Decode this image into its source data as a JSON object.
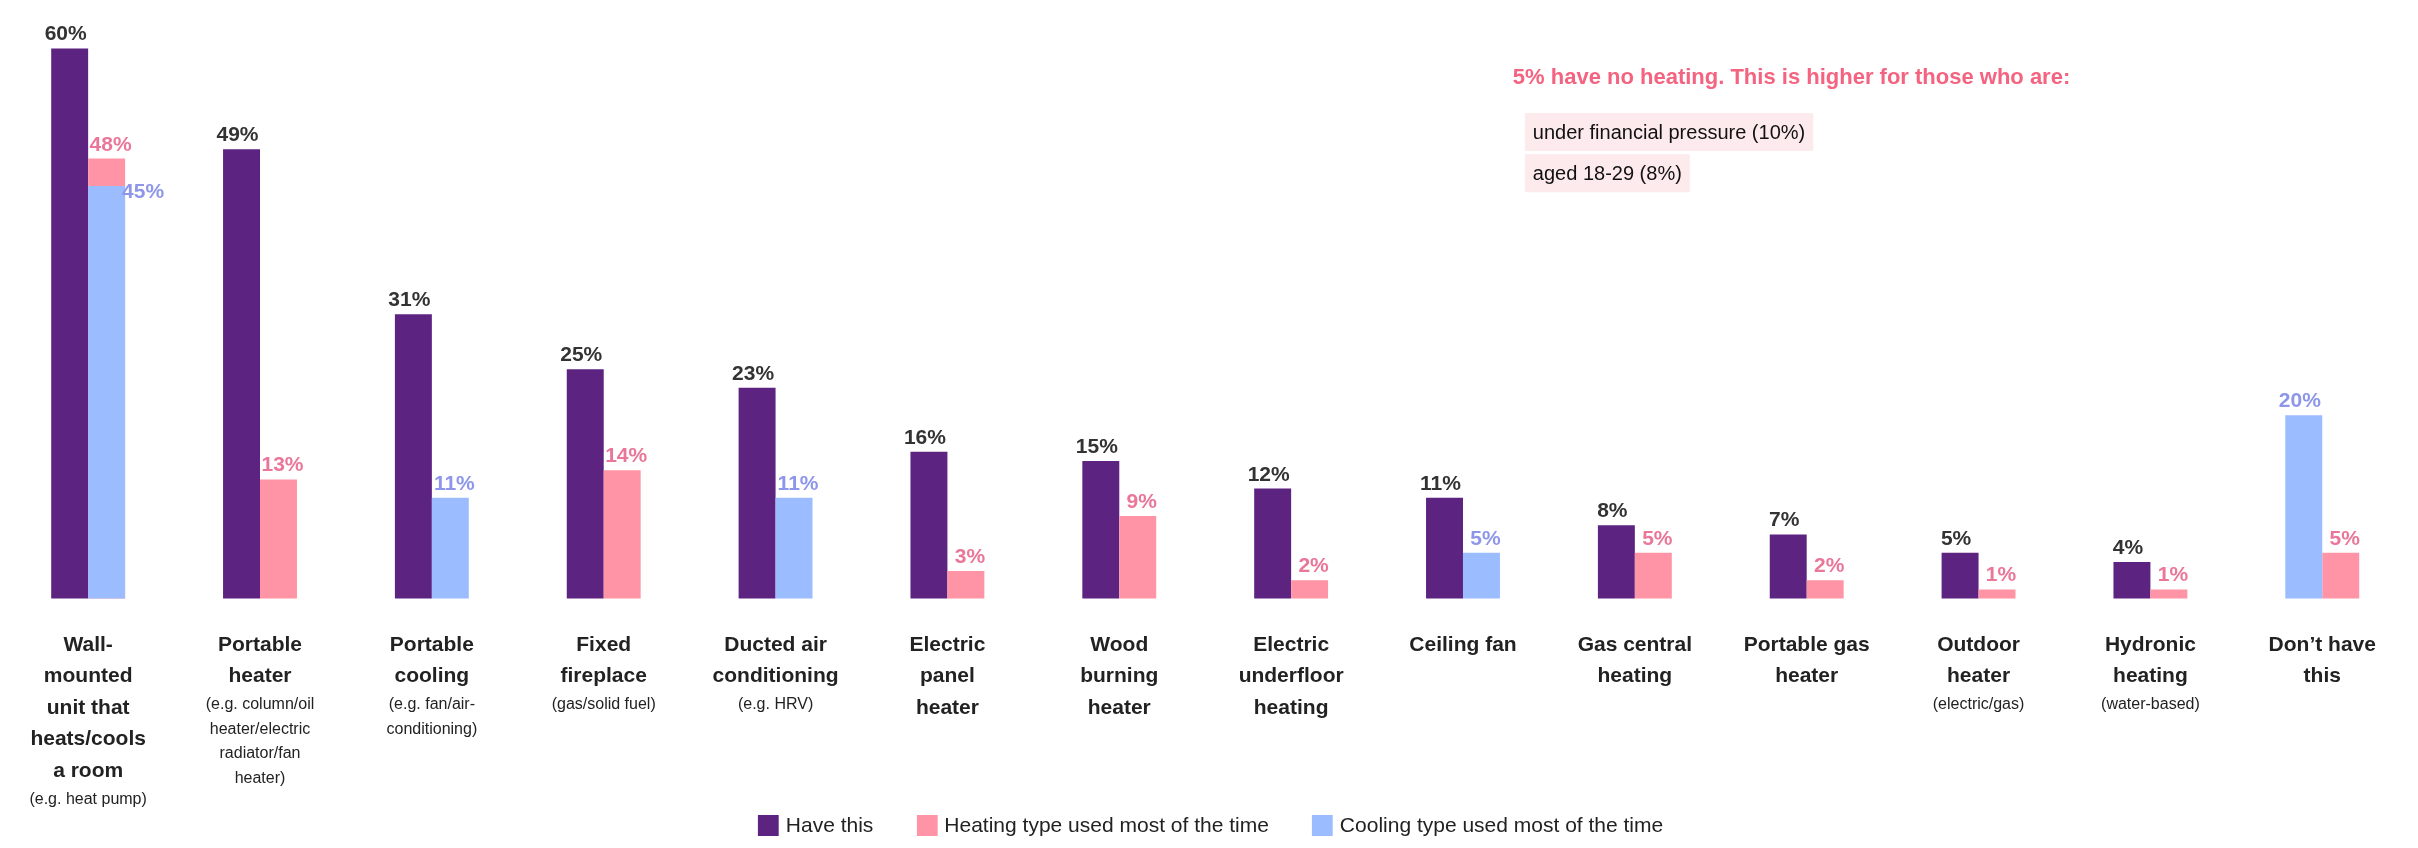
{
  "chart_data": {
    "type": "bar",
    "categories": [
      "Wall-\nmounted\nunit that\nheats/cools\na room\n(e.g. heat pump)",
      "Portable\nheater\n(e.g. column/oil\nheater/electric\nradiator/fan\nheater)",
      "Portable\ncooling\n(e.g. fan/air-\nconditioning)",
      "Fixed\nfireplace\n(gas/solid fuel)",
      "Ducted air\nconditioning\n(e.g. HRV)",
      "Electric\npanel\nheater",
      "Wood\nburning\nheater",
      "Electric\nunderfloor\nheating",
      "Ceiling fan",
      "Gas central\nheating",
      "Portable gas\nheater",
      "Outdoor\nheater\n(electric/gas)",
      "Hydronic\nheating\n(water-based)",
      "Don’t have\nthis"
    ],
    "series": [
      {
        "name": "Have this",
        "color": "#5c2380",
        "values": [
          60,
          49,
          31,
          25,
          23,
          16,
          15,
          12,
          11,
          8,
          7,
          5,
          4,
          null
        ],
        "value_labels": [
          "60%",
          "49%",
          "31%",
          "25%",
          "23%",
          "16%",
          "15%",
          "12%",
          "11%",
          "8%",
          "7%",
          "5%",
          "4%",
          null
        ]
      },
      {
        "name": "Heating type used most of the time",
        "color": "#ff94a6",
        "values": [
          48,
          13,
          null,
          14,
          null,
          3,
          9,
          2,
          null,
          5,
          2,
          1,
          1,
          5
        ],
        "value_labels": [
          "48%",
          "13%",
          null,
          "14%",
          null,
          "3%",
          "9%",
          "2%",
          null,
          "5%",
          "2%",
          "1%",
          "1%",
          "5%"
        ]
      },
      {
        "name": "Cooling type used most of the time",
        "color": "#9bbcff",
        "values": [
          45,
          null,
          11,
          null,
          11,
          null,
          null,
          null,
          5,
          null,
          null,
          null,
          null,
          20
        ],
        "value_labels": [
          "45%",
          null,
          "11%",
          null,
          "11%",
          null,
          null,
          null,
          "5%",
          null,
          null,
          null,
          null,
          "20%"
        ]
      }
    ],
    "annotations": [
      "5% have no heating. This is higher for those who are:",
      "under financial pressure (10%)",
      "aged 18-29 (8%)"
    ],
    "legend": "bottom",
    "grid": false
  }
}
